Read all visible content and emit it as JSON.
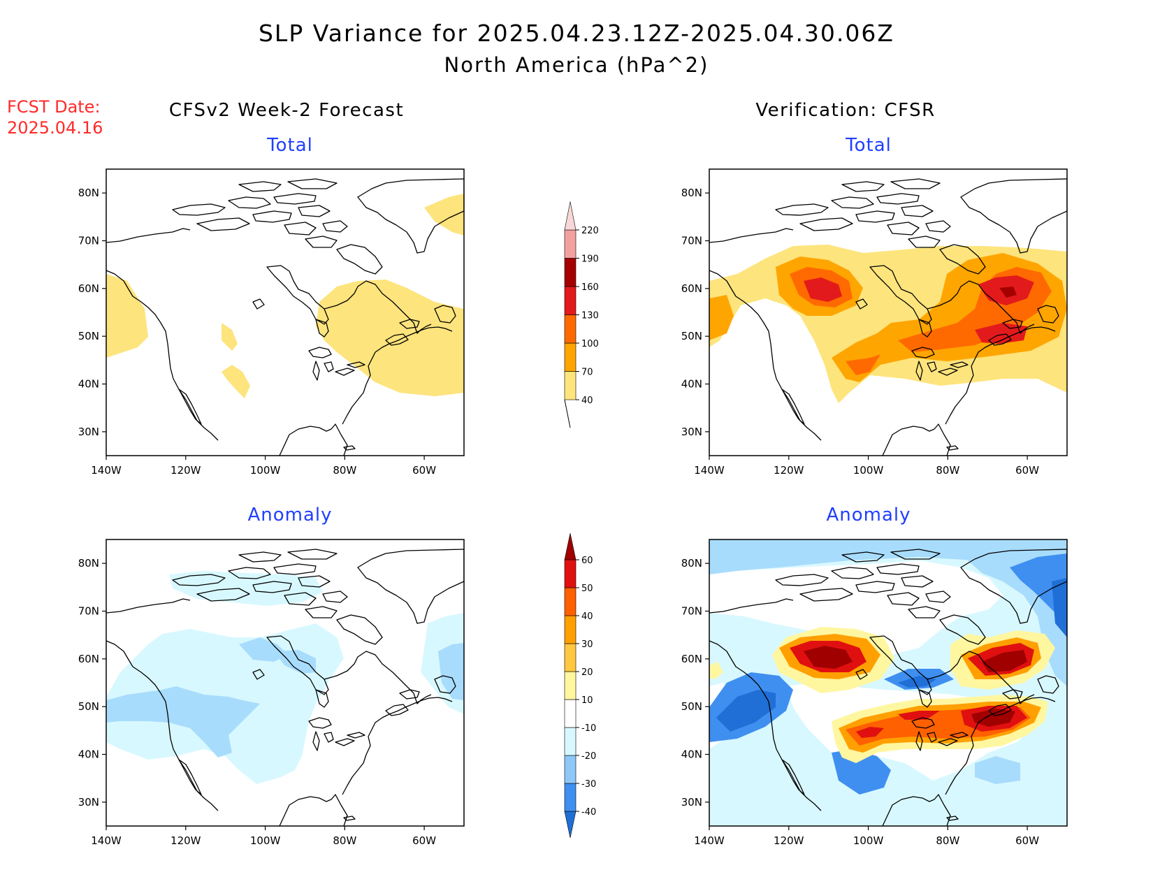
{
  "title_line1": "SLP Variance for 2025.04.23.12Z-2025.04.30.06Z",
  "title_line2": "North America (hPa^2)",
  "fcst_date": {
    "label": "FCST Date:",
    "value": "2025.04.16"
  },
  "left_column_title": "CFSv2 Week-2 Forecast",
  "right_column_title": "Verification: CFSR",
  "panels": {
    "forecast_total": "Total",
    "forecast_anomaly": "Anomaly",
    "verification_total": "Total",
    "verification_anomaly": "Anomaly"
  },
  "lat_ticks": [
    "80N",
    "70N",
    "60N",
    "50N",
    "40N",
    "30N"
  ],
  "lon_ticks": [
    "140W",
    "120W",
    "100W",
    "80W",
    "60W"
  ],
  "map_extent": {
    "lon": [
      -140,
      -50
    ],
    "lat": [
      25,
      85
    ]
  },
  "total_colorbar": {
    "levels": [
      "40",
      "70",
      "100",
      "130",
      "160",
      "190",
      "220"
    ],
    "colors": [
      "#fde47d",
      "#ffa500",
      "#ff6a00",
      "#e31a1c",
      "#a50000",
      "#f2a0a0",
      "#f7d7d7"
    ]
  },
  "anomaly_colorbar": {
    "levels": [
      "-40",
      "-30",
      "-20",
      "-10",
      "10",
      "20",
      "30",
      "40",
      "50",
      "60"
    ],
    "colors": [
      "#1f6fd6",
      "#3f8ff0",
      "#8ec8f8",
      "#d8f8ff",
      "#ffffff",
      "#fff6a0",
      "#ffc840",
      "#ffa000",
      "#ff6000",
      "#e01010",
      "#a00000"
    ]
  },
  "shading_palette": {
    "total": [
      "#fde47d",
      "#ffa500",
      "#ff6a00",
      "#e31a1c",
      "#a50000"
    ],
    "anomaly_negative": [
      "#d8f8ff",
      "#a8dcfc",
      "#3f8ff0",
      "#1f6fd6"
    ],
    "anomaly_positive": [
      "#fff6a0",
      "#ffc840",
      "#ffa000",
      "#ff6000",
      "#e01010",
      "#a00000"
    ]
  }
}
